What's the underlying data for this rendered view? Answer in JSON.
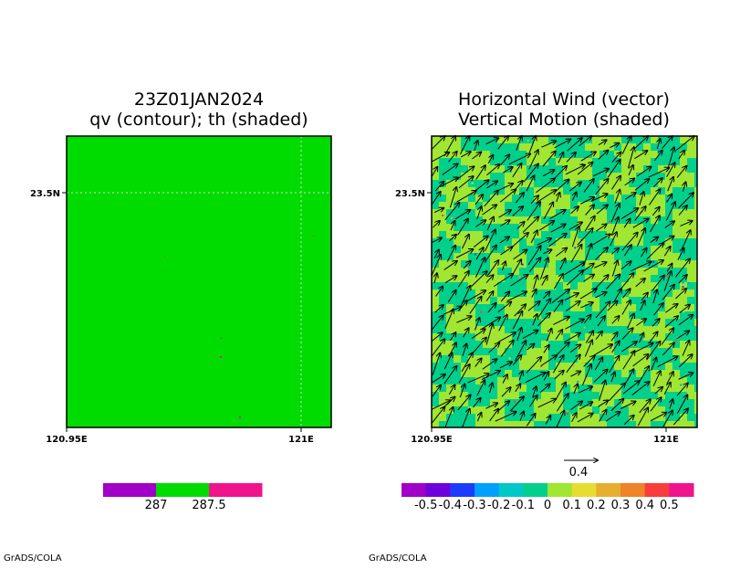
{
  "credit": "GrADS/COLA",
  "panels": {
    "left": {
      "title_line1": "23Z01JAN2024",
      "title_line2": "qv (contour); th (shaded)",
      "ytick": "23.5N",
      "xtick_left": "120.95E",
      "xtick_right": "121E"
    },
    "right": {
      "title_line1": "Horizontal Wind (vector)",
      "title_line2": "Vertical Motion (shaded)",
      "ytick": "23.5N",
      "xtick_left": "120.95E",
      "xtick_right": "121E",
      "vector_ref_label": "0.4"
    }
  },
  "chart_data": [
    {
      "type": "heatmap",
      "title": "23Z01JAN2024 qv (contour); th (shaded)",
      "field_value": 287.25,
      "x_ticks": [
        "120.95E",
        "121E"
      ],
      "y_ticks": [
        "23.5N"
      ],
      "colorbar": {
        "colors": [
          "#a000c8",
          "#00dc00",
          "#f0148c"
        ],
        "labels": [
          "287",
          "287.5"
        ]
      }
    },
    {
      "type": "heatmap",
      "title": "Horizontal Wind (vector) Vertical Motion (shaded)",
      "shade_levels": [
        0,
        0.1
      ],
      "shade_colors": [
        "#00d08c",
        "#a0e632"
      ],
      "vector_reference": 0.4,
      "x_ticks": [
        "120.95E",
        "121E"
      ],
      "y_ticks": [
        "23.5N"
      ],
      "colorbar": {
        "colors": [
          "#a000c8",
          "#6e00dc",
          "#1e3cff",
          "#00a0ff",
          "#00c8c8",
          "#00d08c",
          "#a0e632",
          "#e6dc32",
          "#e6af2d",
          "#f08228",
          "#fa3c3c",
          "#f0148c"
        ],
        "labels": [
          "-0.5",
          "-0.4",
          "-0.3",
          "-0.2",
          "-0.1",
          "0",
          "0.1",
          "0.2",
          "0.3",
          "0.4",
          "0.5"
        ]
      }
    }
  ]
}
